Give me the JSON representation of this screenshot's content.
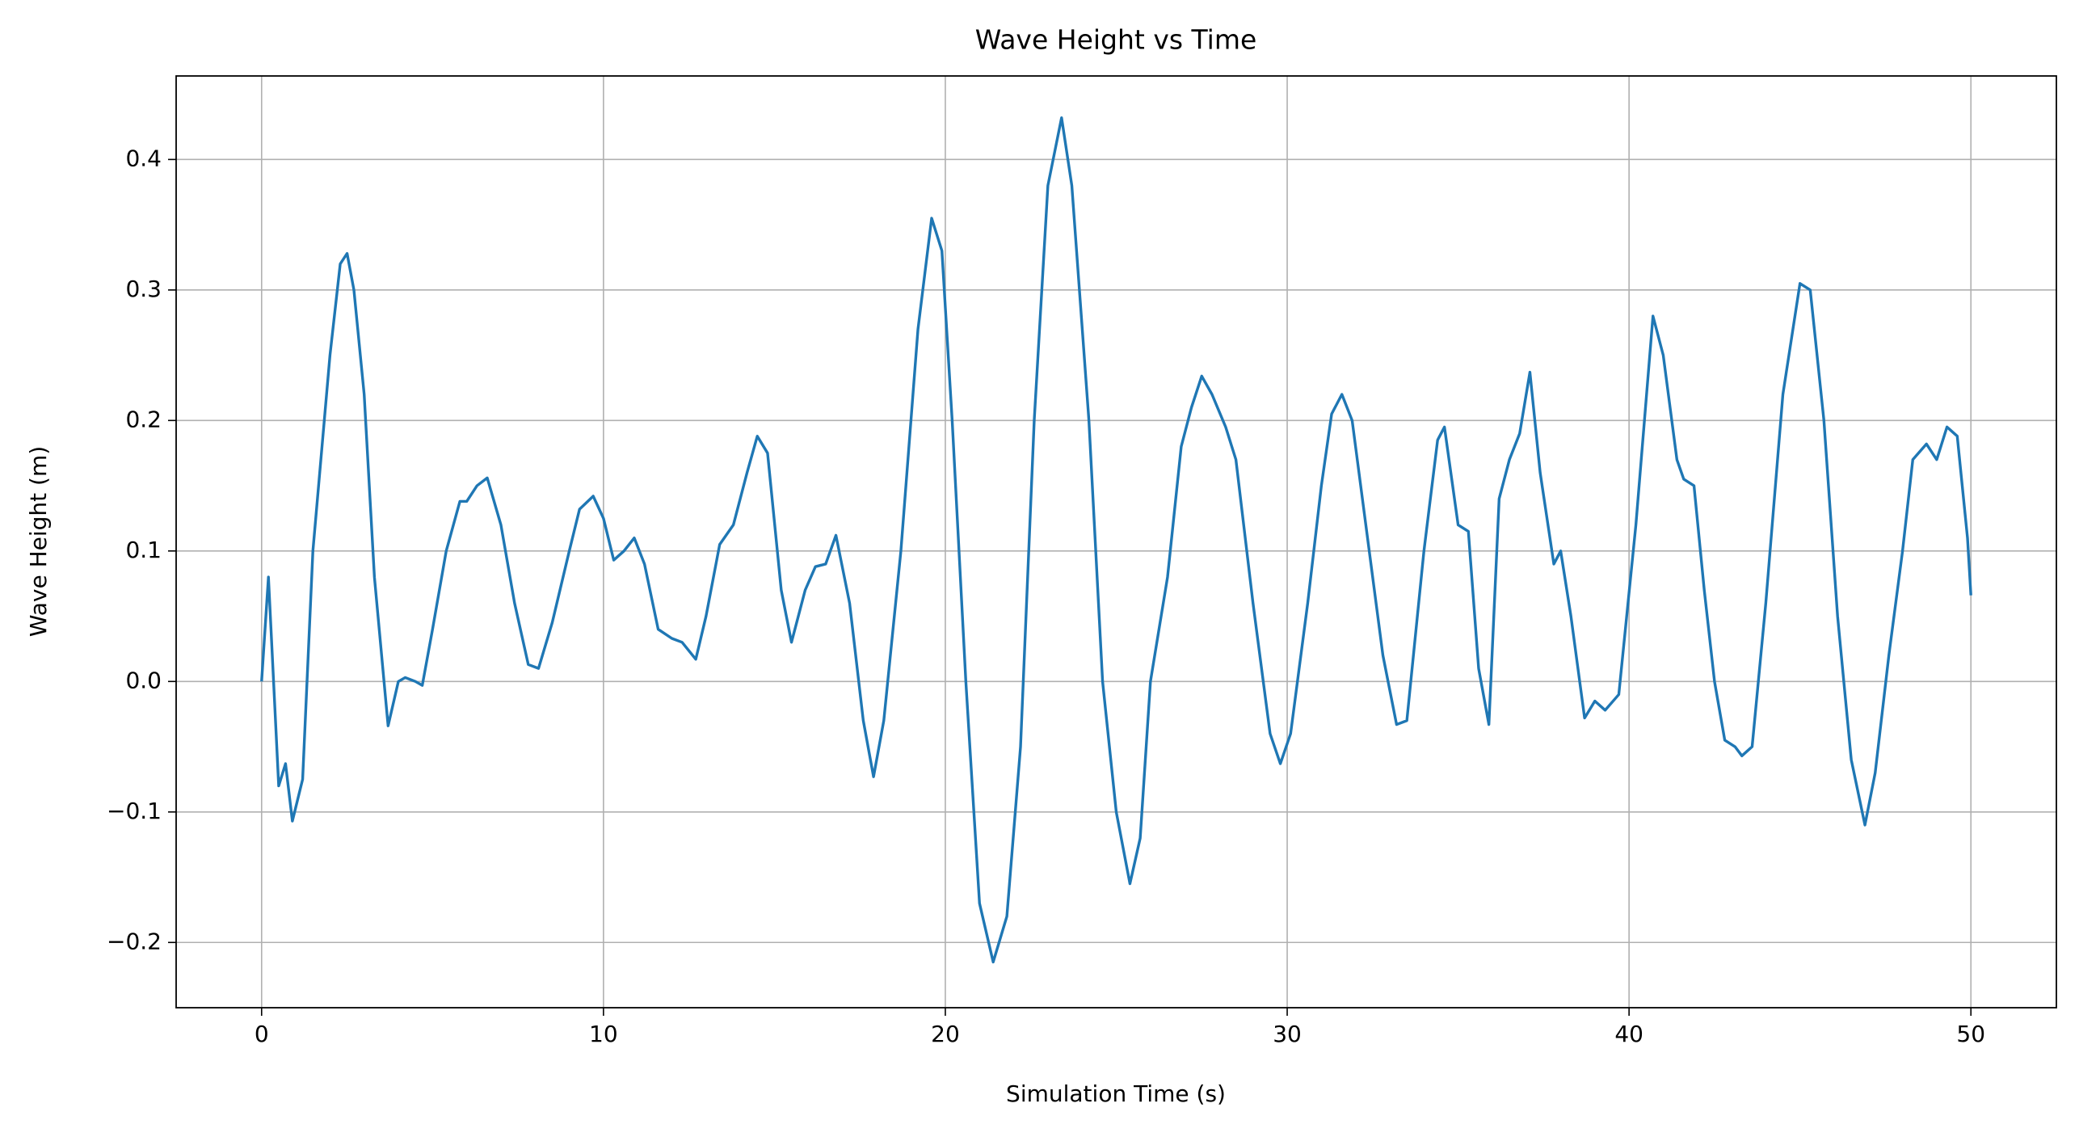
{
  "chart_data": {
    "type": "line",
    "title": "Wave Height vs Time",
    "x_label": "Simulation Time (s)",
    "y_label": "Wave Height (m)",
    "x": [
      0,
      0.2,
      0.5,
      0.7,
      0.9,
      1.2,
      1.5,
      2.0,
      2.3,
      2.5,
      2.7,
      3.0,
      3.3,
      3.7,
      4.0,
      4.2,
      4.5,
      4.7,
      5.0,
      5.4,
      5.8,
      6.0,
      6.3,
      6.6,
      7.0,
      7.4,
      7.8,
      8.1,
      8.5,
      9.0,
      9.3,
      9.7,
      10.0,
      10.3,
      10.6,
      10.9,
      11.2,
      11.6,
      12.0,
      12.3,
      12.7,
      13.0,
      13.4,
      13.8,
      14.2,
      14.5,
      14.8,
      15.2,
      15.5,
      15.9,
      16.2,
      16.5,
      16.8,
      17.2,
      17.6,
      17.9,
      18.2,
      18.7,
      19.2,
      19.6,
      19.9,
      20.2,
      20.6,
      21.0,
      21.4,
      21.8,
      22.2,
      22.6,
      23.0,
      23.4,
      23.7,
      24.2,
      24.6,
      25.0,
      25.4,
      25.7,
      26.0,
      26.5,
      26.9,
      27.2,
      27.5,
      27.8,
      28.2,
      28.5,
      29.0,
      29.5,
      29.8,
      30.1,
      30.6,
      31.0,
      31.3,
      31.6,
      31.9,
      32.3,
      32.8,
      33.2,
      33.5,
      34.0,
      34.4,
      34.6,
      35.0,
      35.3,
      35.6,
      35.9,
      36.2,
      36.5,
      36.8,
      37.1,
      37.4,
      37.8,
      38.0,
      38.3,
      38.7,
      39.0,
      39.3,
      39.7,
      40.2,
      40.7,
      41.0,
      41.4,
      41.6,
      41.9,
      42.2,
      42.5,
      42.8,
      43.1,
      43.3,
      43.6,
      44.0,
      44.5,
      45.0,
      45.3,
      45.7,
      46.1,
      46.5,
      46.9,
      47.2,
      47.6,
      48.0,
      48.3,
      48.7,
      49.0,
      49.3,
      49.6,
      49.9,
      50.0
    ],
    "values": [
      0,
      0.08,
      -0.08,
      -0.063,
      -0.107,
      -0.075,
      0.1,
      0.25,
      0.32,
      0.328,
      0.3,
      0.22,
      0.08,
      -0.034,
      0.0,
      0.003,
      0.0,
      -0.003,
      0.04,
      0.1,
      0.138,
      0.138,
      0.15,
      0.156,
      0.12,
      0.06,
      0.013,
      0.01,
      0.045,
      0.1,
      0.132,
      0.142,
      0.125,
      0.093,
      0.1,
      0.11,
      0.09,
      0.04,
      0.033,
      0.03,
      0.017,
      0.05,
      0.105,
      0.12,
      0.16,
      0.188,
      0.175,
      0.07,
      0.03,
      0.07,
      0.088,
      0.09,
      0.112,
      0.06,
      -0.03,
      -0.073,
      -0.03,
      0.1,
      0.27,
      0.355,
      0.33,
      0.2,
      0.0,
      -0.17,
      -0.215,
      -0.18,
      -0.05,
      0.2,
      0.38,
      0.432,
      0.38,
      0.2,
      0.0,
      -0.1,
      -0.155,
      -0.12,
      0.0,
      0.08,
      0.18,
      0.21,
      0.234,
      0.22,
      0.195,
      0.17,
      0.06,
      -0.04,
      -0.063,
      -0.04,
      0.06,
      0.15,
      0.205,
      0.22,
      0.2,
      0.12,
      0.02,
      -0.033,
      -0.03,
      0.1,
      0.185,
      0.195,
      0.12,
      0.115,
      0.01,
      -0.033,
      0.14,
      0.17,
      0.19,
      0.237,
      0.16,
      0.09,
      0.1,
      0.05,
      -0.028,
      -0.015,
      -0.022,
      -0.01,
      0.12,
      0.28,
      0.25,
      0.17,
      0.155,
      0.15,
      0.07,
      0.0,
      -0.045,
      -0.05,
      -0.057,
      -0.05,
      0.06,
      0.22,
      0.305,
      0.3,
      0.2,
      0.05,
      -0.06,
      -0.11,
      -0.07,
      0.02,
      0.1,
      0.17,
      0.182,
      0.17,
      0.195,
      0.188,
      0.11,
      0.066
    ],
    "color": "#1f77b4",
    "xlim": [
      -2.5,
      52.5
    ],
    "xticks": [
      0,
      10,
      20,
      30,
      40,
      50
    ],
    "ylim": [
      -0.25,
      0.464
    ],
    "yticks": [
      {
        "value": -0.2,
        "label": "−0.2"
      },
      {
        "value": -0.1,
        "label": "−0.1"
      },
      {
        "value": 0.0,
        "label": "0.0"
      },
      0.1,
      0.2,
      0.3,
      0.4
    ],
    "grid": true
  }
}
